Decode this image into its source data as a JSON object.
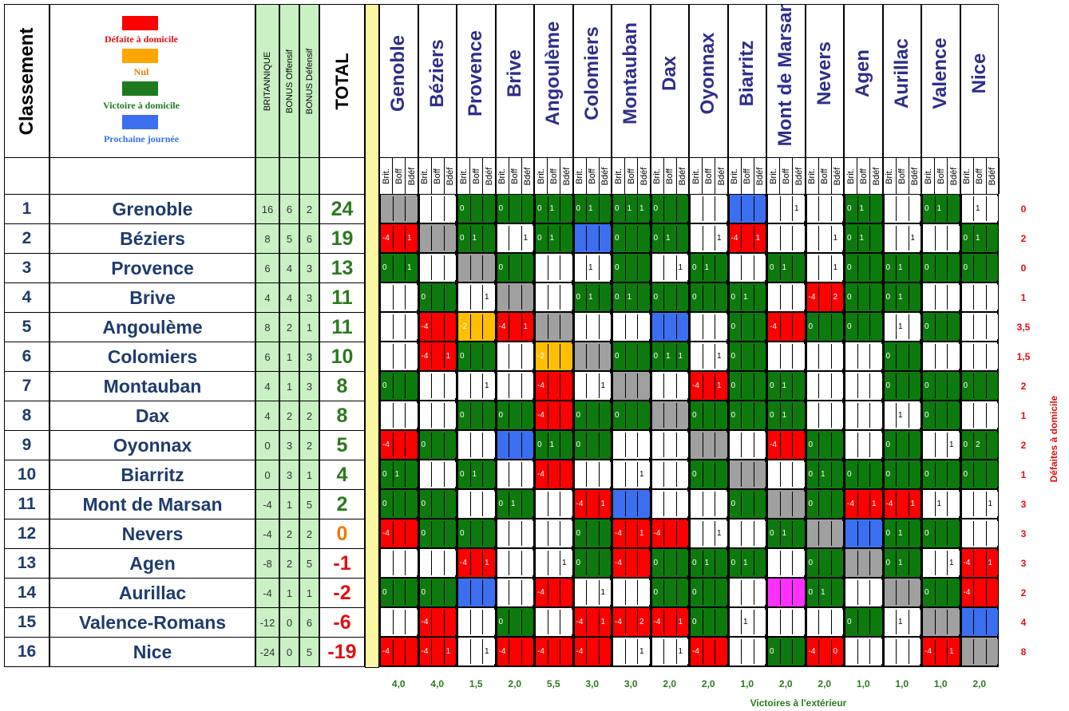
{
  "headers": {
    "classement": "Classement",
    "britannique": "BRITANNIQUE",
    "bonus_off": "BONUS Offensif",
    "bonus_def": "BONUS Défensif",
    "total": "TOTAL"
  },
  "legend": [
    {
      "label": "Défaite à domicile",
      "color": "#ff0000",
      "text_color": "#e01010"
    },
    {
      "label": "Nul",
      "color": "#ffa500",
      "text_color": "#e08000"
    },
    {
      "label": "Victoire à domicile",
      "color": "#1e7a1e",
      "text_color": "#1e7a1e"
    },
    {
      "label": "Prochaine journée",
      "color": "#3b6ff0",
      "text_color": "#3b6ff0"
    }
  ],
  "columns": [
    "Genoble",
    "Béziers",
    "Provence",
    "Brive",
    "Angoulème",
    "Colomiers",
    "Montauban",
    "Dax",
    "Oyonnax",
    "Biarritz",
    "Mont de Marsan",
    "Nevers",
    "Agen",
    "Aurillac",
    "Valence",
    "Nice"
  ],
  "subcols": [
    "Brit.",
    "Boff",
    "Bdéf"
  ],
  "teams": [
    {
      "rank": "1",
      "name": "Grenoble",
      "brit": "16",
      "boff": "6",
      "bdef": "2",
      "total": "24",
      "total_color": "#2a7a1e",
      "defeats": "0"
    },
    {
      "rank": "2",
      "name": "Béziers",
      "brit": "8",
      "boff": "5",
      "bdef": "6",
      "total": "19",
      "total_color": "#2a7a1e",
      "defeats": "2"
    },
    {
      "rank": "3",
      "name": "Provence",
      "brit": "6",
      "boff": "4",
      "bdef": "3",
      "total": "13",
      "total_color": "#2a7a1e",
      "defeats": "0"
    },
    {
      "rank": "4",
      "name": "Brive",
      "brit": "4",
      "boff": "4",
      "bdef": "3",
      "total": "11",
      "total_color": "#2a7a1e",
      "defeats": "1"
    },
    {
      "rank": "5",
      "name": "Angoulème",
      "brit": "8",
      "boff": "2",
      "bdef": "1",
      "total": "11",
      "total_color": "#2a7a1e",
      "defeats": "3,5"
    },
    {
      "rank": "6",
      "name": "Colomiers",
      "brit": "6",
      "boff": "1",
      "bdef": "3",
      "total": "10",
      "total_color": "#2a7a1e",
      "defeats": "1,5"
    },
    {
      "rank": "7",
      "name": "Montauban",
      "brit": "4",
      "boff": "1",
      "bdef": "3",
      "total": "8",
      "total_color": "#2a7a1e",
      "defeats": "2"
    },
    {
      "rank": "8",
      "name": "Dax",
      "brit": "4",
      "boff": "2",
      "bdef": "2",
      "total": "8",
      "total_color": "#2a7a1e",
      "defeats": "1"
    },
    {
      "rank": "9",
      "name": "Oyonnax",
      "brit": "0",
      "boff": "3",
      "bdef": "2",
      "total": "5",
      "total_color": "#2a7a1e",
      "defeats": "2"
    },
    {
      "rank": "10",
      "name": "Biarritz",
      "brit": "0",
      "boff": "3",
      "bdef": "1",
      "total": "4",
      "total_color": "#2a7a1e",
      "defeats": "1"
    },
    {
      "rank": "11",
      "name": "Mont de Marsan",
      "brit": "-4",
      "boff": "1",
      "bdef": "5",
      "total": "2",
      "total_color": "#2a7a1e",
      "defeats": "3"
    },
    {
      "rank": "12",
      "name": "Nevers",
      "brit": "-4",
      "boff": "2",
      "bdef": "2",
      "total": "0",
      "total_color": "#f07800",
      "defeats": "3"
    },
    {
      "rank": "13",
      "name": "Agen",
      "brit": "-8",
      "boff": "2",
      "bdef": "5",
      "total": "-1",
      "total_color": "#e01010",
      "defeats": "3"
    },
    {
      "rank": "14",
      "name": "Aurillac",
      "brit": "-4",
      "boff": "1",
      "bdef": "1",
      "total": "-2",
      "total_color": "#e01010",
      "defeats": "2"
    },
    {
      "rank": "15",
      "name": "Valence-Romans",
      "brit": "-12",
      "boff": "0",
      "bdef": "6",
      "total": "-6",
      "total_color": "#e01010",
      "defeats": "4"
    },
    {
      "rank": "16",
      "name": "Nice",
      "brit": "-24",
      "boff": "0",
      "bdef": "5",
      "total": "-19",
      "total_color": "#e01010",
      "defeats": "8"
    }
  ],
  "grid": [
    [
      "X",
      "W|||",
      "G|0||",
      "G|0||",
      "G|0|1|",
      "G|0|1|",
      "G|0|1|1",
      "G|0||",
      "W|||",
      "B",
      "W|||1",
      "W|||",
      "G|0|1|",
      "W|||",
      "G|0|1|",
      "W||1|"
    ],
    [
      "R|-4||1",
      "X",
      "G|0|1|",
      "W|||1",
      "G|0|1|",
      "B",
      "G|0||",
      "G|0|1|",
      "W|||1",
      "R|-4||1",
      "W|||",
      "W|||1",
      "G|0|1|",
      "W|||1",
      "W|||",
      "G|0|1|"
    ],
    [
      "G|0||1",
      "W|||",
      "X",
      "G|0||",
      "W|||",
      "W||1|",
      "G|0||",
      "W|||1",
      "G|0|1|",
      "W|||",
      "G|0|1|",
      "W|||1",
      "G|0||",
      "G|0|1|",
      "G|0||",
      "G|0||"
    ],
    [
      "W|||",
      "G|0||",
      "W|||1",
      "X",
      "W|||",
      "G|0|1|",
      "G|0|1|",
      "G|0||",
      "G|0||",
      "G|0|1|",
      "W|||",
      "R|-4||2",
      "G|0||",
      "G|0|1|",
      "W|||",
      "W|||"
    ],
    [
      "W|||",
      "R|-4||",
      "O|-2||",
      "R|-4||1",
      "X",
      "W|||",
      "W|||",
      "B",
      "W|||",
      "G|0||",
      "R|-4||",
      "G|0||",
      "G|0||",
      "W||1|",
      "G|0||",
      "W|||"
    ],
    [
      "W|||",
      "R|-4||1",
      "G|0||",
      "W|||",
      "O|-2||",
      "X",
      "G|0||",
      "G|0|1|1",
      "W|||1",
      "G|0||",
      "W|||",
      "W|||",
      "W|||",
      "G|0||",
      "W|||",
      "W|||"
    ],
    [
      "G|0||",
      "W|||",
      "W|||1",
      "W|||",
      "R|-4||",
      "W|||1",
      "X",
      "W|||",
      "R|-4||1",
      "G|0||",
      "G|0|1|",
      "W|||",
      "W|||",
      "G|0||",
      "G|0||",
      "G|0||"
    ],
    [
      "W|||",
      "W|||",
      "G|0||",
      "G|0||",
      "R|-4||",
      "G|0||",
      "G|0||",
      "X",
      "G|0||",
      "G|0||",
      "G|0|1|",
      "W|||",
      "W|||",
      "W||1|",
      "G|0||",
      "W|||"
    ],
    [
      "R|-4||",
      "G|0||",
      "W|||",
      "B",
      "G|0|1|",
      "G|0||",
      "W|||",
      "W|||",
      "X",
      "W|||",
      "R|-4||",
      "G|0||",
      "W|||",
      "G|0||",
      "W|||1",
      "G|0|2|"
    ],
    [
      "G|0|1|",
      "W|||",
      "G|0|1|",
      "W|||",
      "R|-4||",
      "W|||",
      "W|||1",
      "W|||",
      "G|0||",
      "X",
      "W|||",
      "G|0|1|",
      "G|0||",
      "G|0||",
      "G|0||",
      "G|0||"
    ],
    [
      "G|0||",
      "G|0||",
      "W|||",
      "G|0|1|",
      "W|||",
      "R|-4||1",
      "B",
      "W|||",
      "W|||",
      "G|0||",
      "X",
      "G|0||",
      "R|-4||1",
      "R|-4||1",
      "W||1|",
      "W|||1"
    ],
    [
      "R|-4||",
      "G|0||",
      "G|0||",
      "W|||",
      "W|||",
      "G|0||",
      "R|-4||1",
      "R|-4||",
      "W|||1",
      "W|||",
      "G|0|1|",
      "X",
      "B",
      "G|0|1|",
      "G|0||",
      "W|||"
    ],
    [
      "W|||",
      "W|||",
      "R|-4||1",
      "W|||",
      "W|||1",
      "G|0||",
      "R|-4||",
      "G|0||",
      "G|0|1|",
      "G|0|1|",
      "W|||",
      "G|0||",
      "X",
      "G|0|1|",
      "W|||1",
      "R|-4||1"
    ],
    [
      "G|0||",
      "G|0||",
      "B",
      "W|||",
      "R|-4||",
      "W|||1",
      "W|||",
      "G|0||",
      "G|0||",
      "W|||",
      "M",
      "G|0|1|",
      "W|||",
      "X",
      "G|0||",
      "R|-4||"
    ],
    [
      "W|||",
      "R|-4||",
      "W|||",
      "G|0||",
      "W|||",
      "R|-4||1",
      "R|-4||2",
      "R|-4||1",
      "G|0||",
      "W||1|",
      "W|||",
      "W|||",
      "G|0||",
      "W||1|",
      "X",
      "B"
    ],
    [
      "R|-4||",
      "R|-4||1",
      "W|||1",
      "R|-4||",
      "R|-4||",
      "R|-4||",
      "W|||1",
      "W|||1",
      "R|-4||",
      "W|||",
      "G|0||",
      "R|-4||0",
      "W|||",
      "W|||",
      "R|-4||1",
      "X"
    ]
  ],
  "away_wins": [
    "4,0",
    "4,0",
    "1,5",
    "2,0",
    "5,5",
    "3,0",
    "3,0",
    "2,0",
    "2,0",
    "1,0",
    "2,0",
    "2,0",
    "1,0",
    "1,0",
    "1,0",
    "2,0"
  ],
  "footer_label": "Victoires à l'extérieur",
  "right_label": "Défaites à domicile",
  "colors": {
    "red": "#ff0000",
    "green": "#0c7a0c",
    "orange": "#ffbf00",
    "blue": "#3b6ff0",
    "grey": "#a0a0a0",
    "magenta": "#ff30ff",
    "header_green": "#c9f1c4",
    "yellow": "#fbf7a0"
  }
}
